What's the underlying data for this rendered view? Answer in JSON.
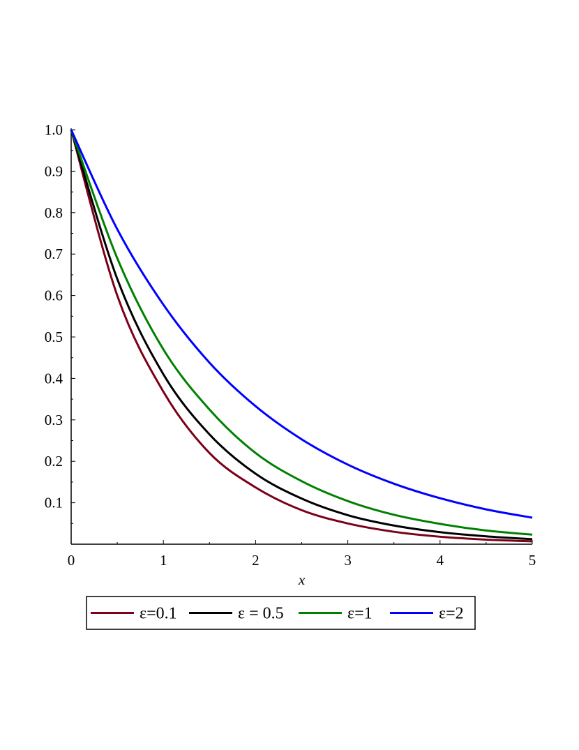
{
  "chart_data": {
    "type": "line",
    "title": "",
    "xlabel": "x",
    "ylabel": "",
    "xlim": [
      0,
      5
    ],
    "ylim": [
      0,
      1.0
    ],
    "x_ticks": [
      0,
      1,
      2,
      3,
      4,
      5
    ],
    "x_tick_labels": [
      "0",
      "1",
      "2",
      "3",
      "4",
      "5"
    ],
    "y_ticks": [
      0.1,
      0.2,
      0.3,
      0.4,
      0.5,
      0.6,
      0.7,
      0.8,
      0.9,
      1.0
    ],
    "y_tick_labels": [
      "0.1",
      "0.2",
      "0.3",
      "0.4",
      "0.5",
      "0.6",
      "0.7",
      "0.8",
      "0.9",
      "1.0"
    ],
    "grid": false,
    "legend_position": "bottom",
    "x": [
      0,
      0.5,
      1,
      1.5,
      2,
      2.5,
      3,
      3.5,
      4,
      4.5,
      5
    ],
    "series": [
      {
        "name": "ε=0.1",
        "color": "#7b0018",
        "values": [
          1.0,
          0.6,
          0.368,
          0.22,
          0.137,
          0.082,
          0.05,
          0.03,
          0.018,
          0.011,
          0.007
        ]
      },
      {
        "name": "ε = 0.5",
        "color": "#000000",
        "values": [
          1.0,
          0.64,
          0.41,
          0.265,
          0.17,
          0.11,
          0.07,
          0.045,
          0.029,
          0.019,
          0.012
        ]
      },
      {
        "name": "ε=1",
        "color": "#008000",
        "values": [
          1.0,
          0.69,
          0.47,
          0.325,
          0.22,
          0.152,
          0.104,
          0.071,
          0.049,
          0.033,
          0.023
        ]
      },
      {
        "name": "ε=2",
        "color": "#0000ff",
        "values": [
          1.0,
          0.76,
          0.578,
          0.438,
          0.333,
          0.253,
          0.192,
          0.146,
          0.111,
          0.084,
          0.064
        ]
      }
    ]
  }
}
